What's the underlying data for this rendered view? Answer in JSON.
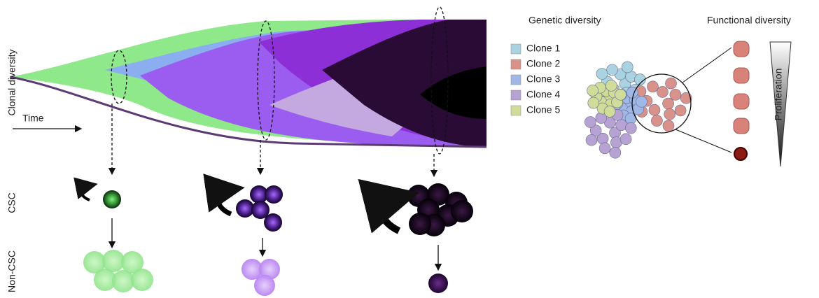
{
  "left_panel": {
    "y_label": "Clonal diversity",
    "x_label": "Time",
    "csc_label": "CSC",
    "non_csc_label": "Non-CSC"
  },
  "right_panel": {
    "genetic_title": "Genetic diversity",
    "functional_title": "Functional diversity",
    "gradient_label": "Proliferation",
    "legend": [
      {
        "label": "Clone 1",
        "color": "#a9d3e0"
      },
      {
        "label": "Clone 2",
        "color": "#d9928a"
      },
      {
        "label": "Clone 3",
        "color": "#9fb8e6"
      },
      {
        "label": "Clone 4",
        "color": "#b7a3d3"
      },
      {
        "label": "Clone 5",
        "color": "#cfdc9a"
      }
    ]
  }
}
